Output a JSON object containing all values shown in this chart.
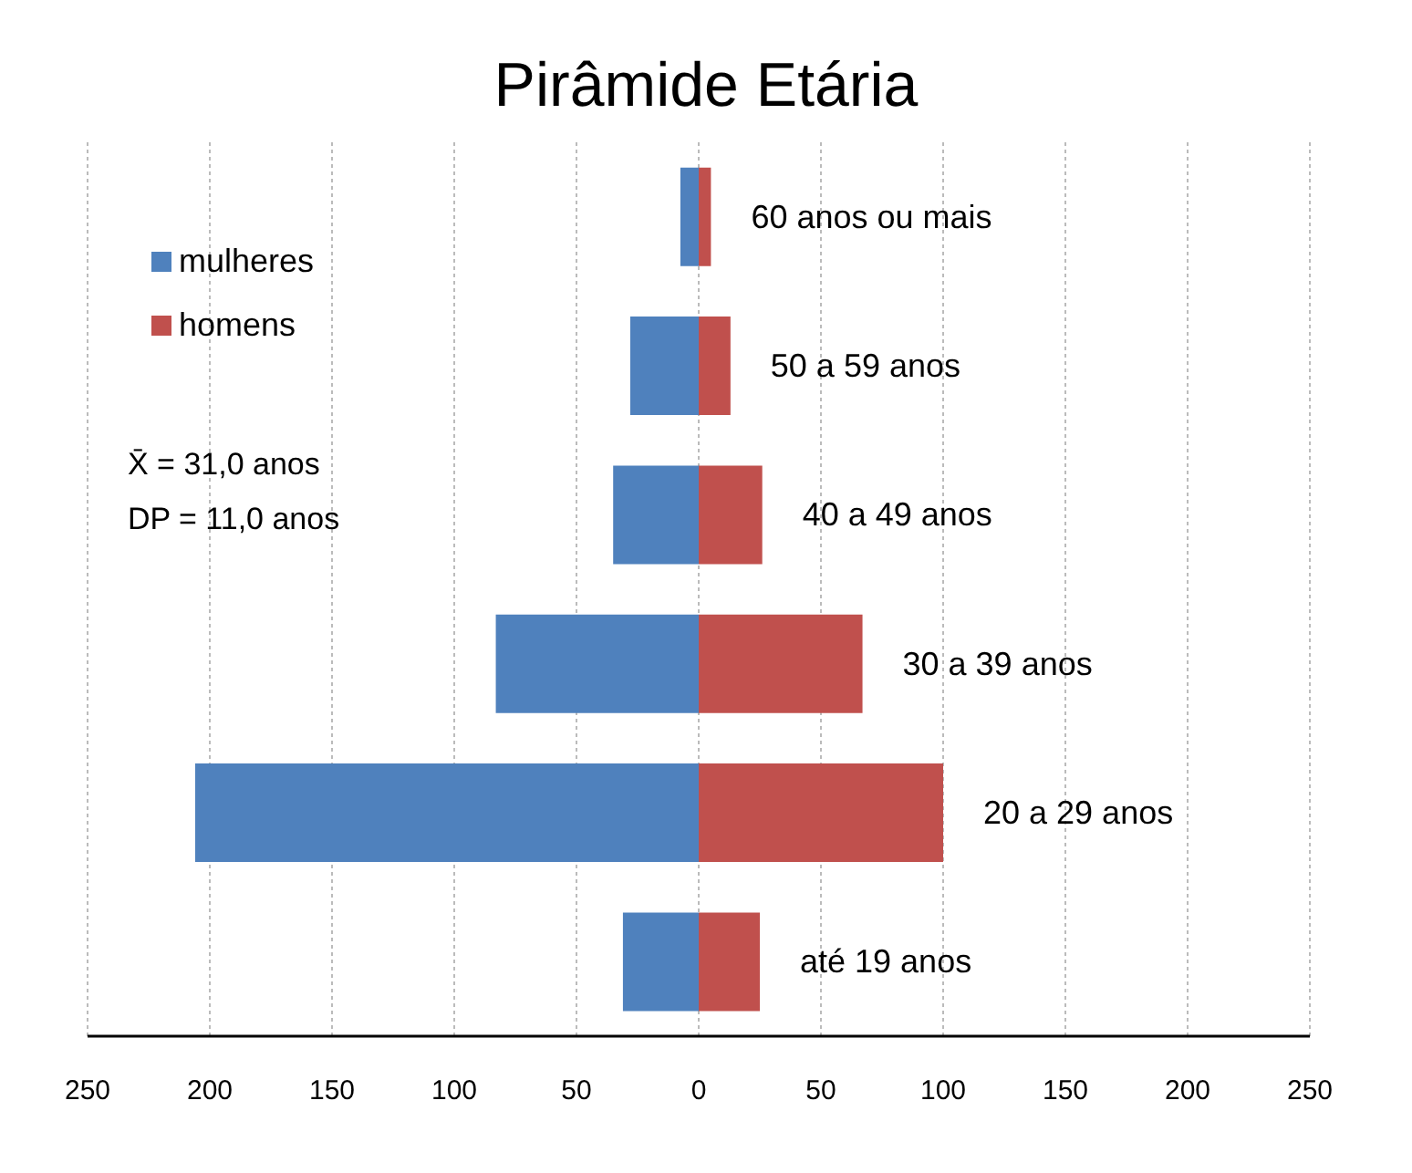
{
  "chart_data": {
    "type": "bar",
    "title": "Pirâmide Etária",
    "orientation": "horizontal",
    "stacked": true,
    "categories": [
      "60 anos ou mais",
      "50 a 59 anos",
      "40 a 49 anos",
      "30 a 39 anos",
      "20 a 29 anos",
      "até 19 anos"
    ],
    "series": [
      {
        "name": "mulheres",
        "color": "#4f81bd",
        "values": [
          -7.5,
          -28,
          -35,
          -83,
          -206,
          -31
        ]
      },
      {
        "name": "homens",
        "color": "#c0504d",
        "values": [
          5,
          13,
          26,
          67,
          100,
          25
        ]
      }
    ],
    "xlim": [
      -250,
      250
    ],
    "xticks": [
      {
        "value": -250,
        "label": "250"
      },
      {
        "value": -200,
        "label": "200"
      },
      {
        "value": -150,
        "label": "150"
      },
      {
        "value": -100,
        "label": "100"
      },
      {
        "value": -50,
        "label": "50"
      },
      0,
      50,
      100,
      150,
      200,
      250
    ],
    "grid": "x",
    "legend": "top left",
    "annotations": [
      "X̄ = 31,0 anos",
      "DP = 11,0 anos"
    ]
  }
}
